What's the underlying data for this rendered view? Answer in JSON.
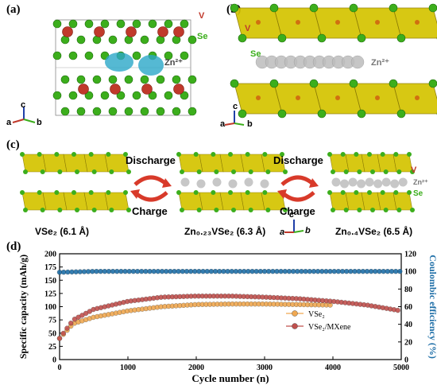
{
  "panels": {
    "a": {
      "label": "(a)",
      "se": "Se",
      "v": "V",
      "zn": "Zn²⁺",
      "axes": [
        "c",
        "a",
        "b"
      ]
    },
    "b": {
      "label": "(b)",
      "se": "Se",
      "v": "V",
      "zn": "Zn²⁺",
      "axes": [
        "c",
        "a",
        "b"
      ]
    },
    "c": {
      "label": "(c)",
      "discharge1": "Discharge",
      "charge1": "Charge",
      "discharge2": "Discharge",
      "charge2": "Charge",
      "v": "V",
      "zn": "Zn²⁺",
      "se": "Se",
      "axes": [
        "c",
        "a",
        "b"
      ],
      "cap1": "VSe₂ (6.1 Å)",
      "cap2": "Zn₀.₂₃VSe₂ (6.3 Å)",
      "cap3": "Zn₀.₄VSe₂ (6.5 Å)"
    },
    "d": {
      "label": "(d)"
    }
  },
  "colors": {
    "octa": "#d4c400",
    "se": "#3cae1c",
    "v": "#c0392b",
    "zn": "#bdbdbd",
    "blue": "#1f6fa8",
    "orange": "#f0a850",
    "red": "#c0504d"
  },
  "chart_data": {
    "type": "scatter",
    "xlabel": "Cycle number (n)",
    "ylabel": "Specific capacity (mAh/g)",
    "y2label": "Coulombic efficiency (%)",
    "xlim": [
      0,
      5000
    ],
    "ylim": [
      0,
      200
    ],
    "y2lim": [
      0,
      120
    ],
    "xticks": [
      0,
      1000,
      2000,
      3000,
      4000,
      5000
    ],
    "yticks": [
      0,
      25,
      50,
      75,
      100,
      125,
      150,
      175,
      200
    ],
    "y2ticks": [
      0,
      20,
      40,
      60,
      80,
      100,
      120
    ],
    "series": [
      {
        "name": "VSe₂",
        "axis": "left",
        "color": "#f0a850",
        "x": [
          0,
          200,
          500,
          1000,
          1500,
          2000,
          2500,
          3000,
          3500,
          4000
        ],
        "y": [
          40,
          68,
          80,
          92,
          100,
          104,
          105,
          105,
          104,
          103
        ]
      },
      {
        "name": "VSe₂/MXene",
        "axis": "left",
        "color": "#c0504d",
        "x": [
          0,
          200,
          500,
          1000,
          1500,
          2000,
          2500,
          3000,
          3500,
          4000,
          4500,
          5000
        ],
        "y": [
          40,
          75,
          95,
          110,
          118,
          120,
          120,
          118,
          115,
          110,
          103,
          92
        ]
      },
      {
        "name": "",
        "axis": "right",
        "color": "#1f6fa8",
        "x": [
          0,
          500,
          1000,
          1500,
          2000,
          2500,
          3000,
          3500,
          4000,
          4500,
          5000
        ],
        "y": [
          99,
          100,
          100,
          100,
          100,
          100,
          100,
          100,
          100,
          100,
          100
        ]
      }
    ],
    "legend": [
      "VSe₂",
      "VSe₂/MXene"
    ],
    "legend_position": "center-right"
  }
}
